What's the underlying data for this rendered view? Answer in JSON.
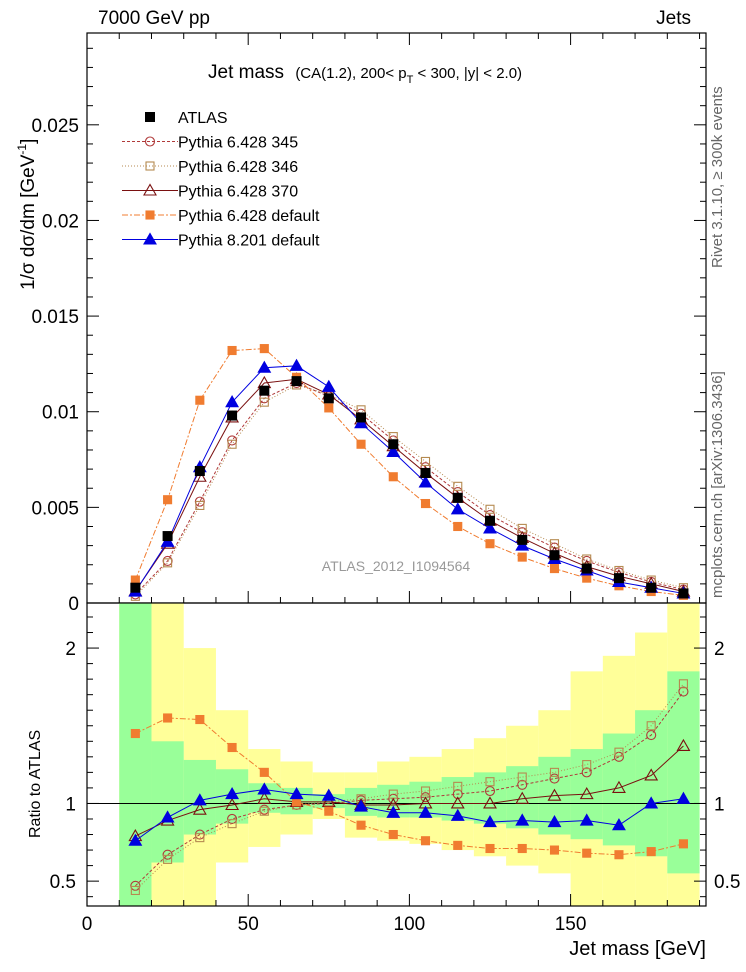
{
  "header": {
    "left": "7000 GeV pp",
    "right": "Jets"
  },
  "right_labels": {
    "rivet": "Rivet 3.1.10, ≥ 300k events",
    "mcplots": "mcplots.cern.ch [arXiv:1306.3436]"
  },
  "chart_data": {
    "type": "line",
    "title_main": "Jet mass",
    "title_sub": "(CA(1.2), 200< p",
    "title_sub_script": "T",
    "title_sub_tail": " < 300, |y| < 2.0)",
    "ylabel": "1/σ dσ/dm [GeV",
    "ylabel_sup": "-1",
    "ylabel_close": "]",
    "xlabel": "Jet mass [GeV]",
    "ratio_ylabel": "Ratio to ATLAS",
    "watermark": "ATLAS_2012_I1094564",
    "xlim": [
      0,
      192
    ],
    "ylim": [
      0,
      0.0298
    ],
    "ratio_ylim": [
      0.34,
      2.29
    ],
    "x_ticks": [
      "0",
      "50",
      "100",
      "150"
    ],
    "x_tick_values": [
      0,
      50,
      100,
      150
    ],
    "y_ticks": [
      "0",
      "0.005",
      "0.01",
      "0.015",
      "0.02",
      "0.025"
    ],
    "y_tick_values": [
      0,
      0.005,
      0.01,
      0.015,
      0.02,
      0.025
    ],
    "ratio_ticks": [
      "0.5",
      "1",
      "2"
    ],
    "ratio_tick_values": [
      0.5,
      1,
      2
    ],
    "x": [
      15,
      25,
      35,
      45,
      55,
      65,
      75,
      85,
      95,
      105,
      115,
      125,
      135,
      145,
      155,
      165,
      175,
      185
    ],
    "bin_edges": [
      10,
      20,
      30,
      40,
      50,
      60,
      70,
      80,
      90,
      100,
      110,
      120,
      130,
      140,
      150,
      160,
      170,
      180,
      190
    ],
    "atlas": {
      "name": "ATLAS",
      "color": "#000000",
      "values": [
        0.0008,
        0.0035,
        0.0069,
        0.0098,
        0.0111,
        0.0116,
        0.0107,
        0.0097,
        0.0083,
        0.0068,
        0.0055,
        0.0043,
        0.0033,
        0.0025,
        0.0018,
        0.0013,
        0.0008,
        0.0005
      ]
    },
    "bands": {
      "green": [
        [
          0.34,
          2.29
        ],
        [
          0.62,
          1.4
        ],
        [
          0.8,
          1.28
        ],
        [
          0.87,
          1.22
        ],
        [
          0.94,
          1.13
        ],
        [
          0.93,
          1.1
        ],
        [
          0.97,
          1.06
        ],
        [
          0.92,
          1.1
        ],
        [
          0.91,
          1.12
        ],
        [
          0.91,
          1.14
        ],
        [
          0.89,
          1.17
        ],
        [
          0.87,
          1.2
        ],
        [
          0.84,
          1.24
        ],
        [
          0.8,
          1.3
        ],
        [
          0.77,
          1.35
        ],
        [
          0.73,
          1.45
        ],
        [
          0.66,
          1.6
        ],
        [
          0.55,
          1.85
        ]
      ],
      "yellow": [
        [
          0.34,
          2.29
        ],
        [
          0.34,
          2.29
        ],
        [
          0.34,
          2.0
        ],
        [
          0.62,
          1.6
        ],
        [
          0.72,
          1.35
        ],
        [
          0.8,
          1.27
        ],
        [
          0.9,
          1.2
        ],
        [
          0.78,
          1.2
        ],
        [
          0.76,
          1.27
        ],
        [
          0.74,
          1.3
        ],
        [
          0.7,
          1.35
        ],
        [
          0.66,
          1.42
        ],
        [
          0.6,
          1.5
        ],
        [
          0.55,
          1.6
        ],
        [
          0.34,
          1.85
        ],
        [
          0.34,
          1.95
        ],
        [
          0.34,
          2.1
        ],
        [
          0.34,
          2.29
        ]
      ]
    },
    "series": [
      {
        "name": "Pythia 6.428 345",
        "color": "#b03a3a",
        "marker": "circle-open",
        "dash": "3,2",
        "values": [
          0.00045,
          0.0022,
          0.0053,
          0.0085,
          0.0107,
          0.0115,
          0.0108,
          0.0099,
          0.0085,
          0.0071,
          0.0058,
          0.0046,
          0.0037,
          0.0029,
          0.0022,
          0.0016,
          0.0011,
          0.0007
        ],
        "ratio": [
          0.47,
          0.67,
          0.8,
          0.9,
          0.96,
          0.99,
          1.0,
          1.02,
          1.03,
          1.04,
          1.06,
          1.08,
          1.12,
          1.16,
          1.2,
          1.3,
          1.44,
          1.72
        ]
      },
      {
        "name": "Pythia 6.428 346",
        "color": "#b58a50",
        "marker": "square-open",
        "dash": "1,2",
        "values": [
          0.00035,
          0.0021,
          0.0051,
          0.0083,
          0.0105,
          0.0114,
          0.0109,
          0.0101,
          0.0087,
          0.0074,
          0.0061,
          0.0049,
          0.0039,
          0.0031,
          0.0023,
          0.0017,
          0.0012,
          0.0008
        ],
        "ratio": [
          0.44,
          0.64,
          0.78,
          0.87,
          0.95,
          0.99,
          1.01,
          1.03,
          1.06,
          1.08,
          1.11,
          1.14,
          1.17,
          1.2,
          1.25,
          1.33,
          1.5,
          1.77
        ]
      },
      {
        "name": "Pythia 6.428 370",
        "color": "#7a1010",
        "marker": "triangle-open",
        "dash": "",
        "values": [
          0.00062,
          0.0031,
          0.0066,
          0.0097,
          0.0115,
          0.0117,
          0.0109,
          0.0096,
          0.0082,
          0.0068,
          0.0055,
          0.0043,
          0.0034,
          0.0026,
          0.0019,
          0.0014,
          0.001,
          0.0006
        ],
        "ratio": [
          0.79,
          0.89,
          0.96,
          0.99,
          1.03,
          1.01,
          1.01,
          0.99,
          0.99,
          1.0,
          1.0,
          1.0,
          1.03,
          1.05,
          1.06,
          1.1,
          1.18,
          1.37
        ]
      },
      {
        "name": "Pythia 6.428 default",
        "color": "#f07c30",
        "marker": "square-filled",
        "dash": "6,2,2,2",
        "values": [
          0.0012,
          0.0054,
          0.0106,
          0.0132,
          0.0133,
          0.0118,
          0.0102,
          0.0083,
          0.0066,
          0.0052,
          0.004,
          0.0031,
          0.0024,
          0.0018,
          0.0013,
          0.0009,
          0.0006,
          0.0004
        ],
        "ratio": [
          1.45,
          1.55,
          1.54,
          1.36,
          1.2,
          1.01,
          0.95,
          0.86,
          0.8,
          0.76,
          0.73,
          0.71,
          0.71,
          0.7,
          0.68,
          0.67,
          0.69,
          0.74
        ]
      },
      {
        "name": "Pythia 8.201 default",
        "color": "#0000e0",
        "marker": "triangle-filled",
        "dash": "",
        "values": [
          0.0006,
          0.0032,
          0.0071,
          0.0105,
          0.0123,
          0.0124,
          0.0113,
          0.0094,
          0.0079,
          0.0063,
          0.0049,
          0.0039,
          0.003,
          0.0023,
          0.0017,
          0.0011,
          0.0008,
          0.0005
        ],
        "ratio": [
          0.76,
          0.91,
          1.02,
          1.06,
          1.09,
          1.06,
          1.05,
          0.98,
          0.94,
          0.94,
          0.92,
          0.88,
          0.89,
          0.88,
          0.89,
          0.86,
          1.0,
          1.03
        ]
      }
    ]
  }
}
